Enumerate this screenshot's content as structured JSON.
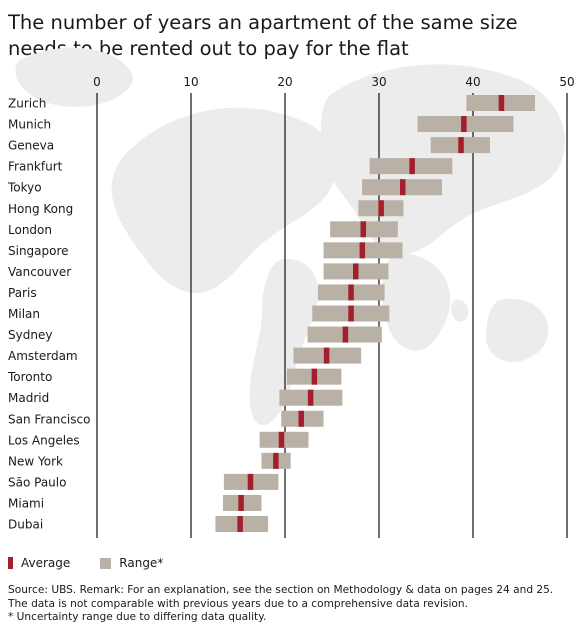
{
  "chart_data": {
    "type": "bar",
    "orientation": "horizontal",
    "title": "The number of years an apartment of the same size needs to be rented out to pay for the flat",
    "xlabel": "",
    "ylabel": "",
    "xlim": [
      0,
      50
    ],
    "xticks": [
      0,
      10,
      20,
      30,
      40,
      50
    ],
    "grid": true,
    "legend_position": "bottom-left",
    "categories": [
      "Zurich",
      "Munich",
      "Geneva",
      "Frankfurt",
      "Tokyo",
      "Hong Kong",
      "London",
      "Singapore",
      "Vancouver",
      "Paris",
      "Milan",
      "Sydney",
      "Amsterdam",
      "Toronto",
      "Madrid",
      "San Francisco",
      "Los Angeles",
      "New York",
      "São Paulo",
      "Miami",
      "Dubai"
    ],
    "series": [
      {
        "name": "Range*",
        "low": [
          39.3,
          34.1,
          35.5,
          29.0,
          28.2,
          27.8,
          24.8,
          24.1,
          24.1,
          23.5,
          22.9,
          22.4,
          20.9,
          20.2,
          19.4,
          19.6,
          17.3,
          17.5,
          13.5,
          13.4,
          12.6
        ],
        "high": [
          46.6,
          44.3,
          41.8,
          37.8,
          36.7,
          32.6,
          32.0,
          32.5,
          31.0,
          30.6,
          31.1,
          30.3,
          28.1,
          26.0,
          26.1,
          24.1,
          22.5,
          20.6,
          19.3,
          17.5,
          18.2
        ]
      },
      {
        "name": "Average",
        "values": [
          43.0,
          39.0,
          38.7,
          33.5,
          32.5,
          30.2,
          28.3,
          28.2,
          27.5,
          27.0,
          27.0,
          26.4,
          24.4,
          23.1,
          22.7,
          21.7,
          19.6,
          19.0,
          16.3,
          15.3,
          15.2
        ]
      }
    ],
    "colors": {
      "average": "#a31f2b",
      "range": "#b9b1a5",
      "grid": "#111111"
    }
  },
  "legend": {
    "average_label": "Average",
    "range_label": "Range*"
  },
  "notes": [
    "Source: UBS. Remark: For an explanation, see the section on Methodology & data on pages 24 and 25.",
    "The data is not comparable with previous years due to a comprehensive data revision.",
    "* Uncertainty range due to differing data quality."
  ]
}
